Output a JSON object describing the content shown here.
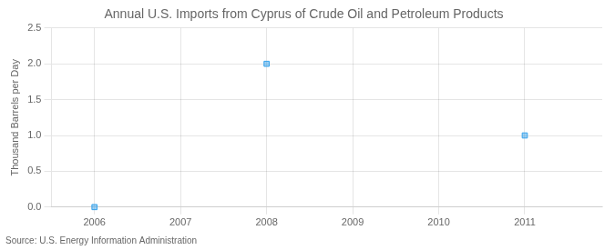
{
  "chart_data": {
    "type": "scatter",
    "title": "Annual U.S. Imports from Cyprus of Crude Oil and Petroleum Products",
    "ylabel": "Thousand Barrels per Day",
    "annotation": "Source: U.S. Energy Information Administration",
    "x": [
      2006,
      2008,
      2011
    ],
    "values": [
      0.0,
      2.0,
      1.0
    ],
    "marker": "square",
    "xlim": [
      2005.5,
      2011.9
    ],
    "xticks": [
      2006,
      2007,
      2008,
      2009,
      2010,
      2011
    ],
    "ylim": [
      0,
      2.5
    ],
    "yticks": [
      {
        "value": 0,
        "label": "0.0"
      },
      0.5,
      {
        "value": 1,
        "label": "1.0"
      },
      1.5,
      {
        "value": 2,
        "label": "2.0"
      },
      2.5
    ],
    "grid": true,
    "legend": false
  }
}
